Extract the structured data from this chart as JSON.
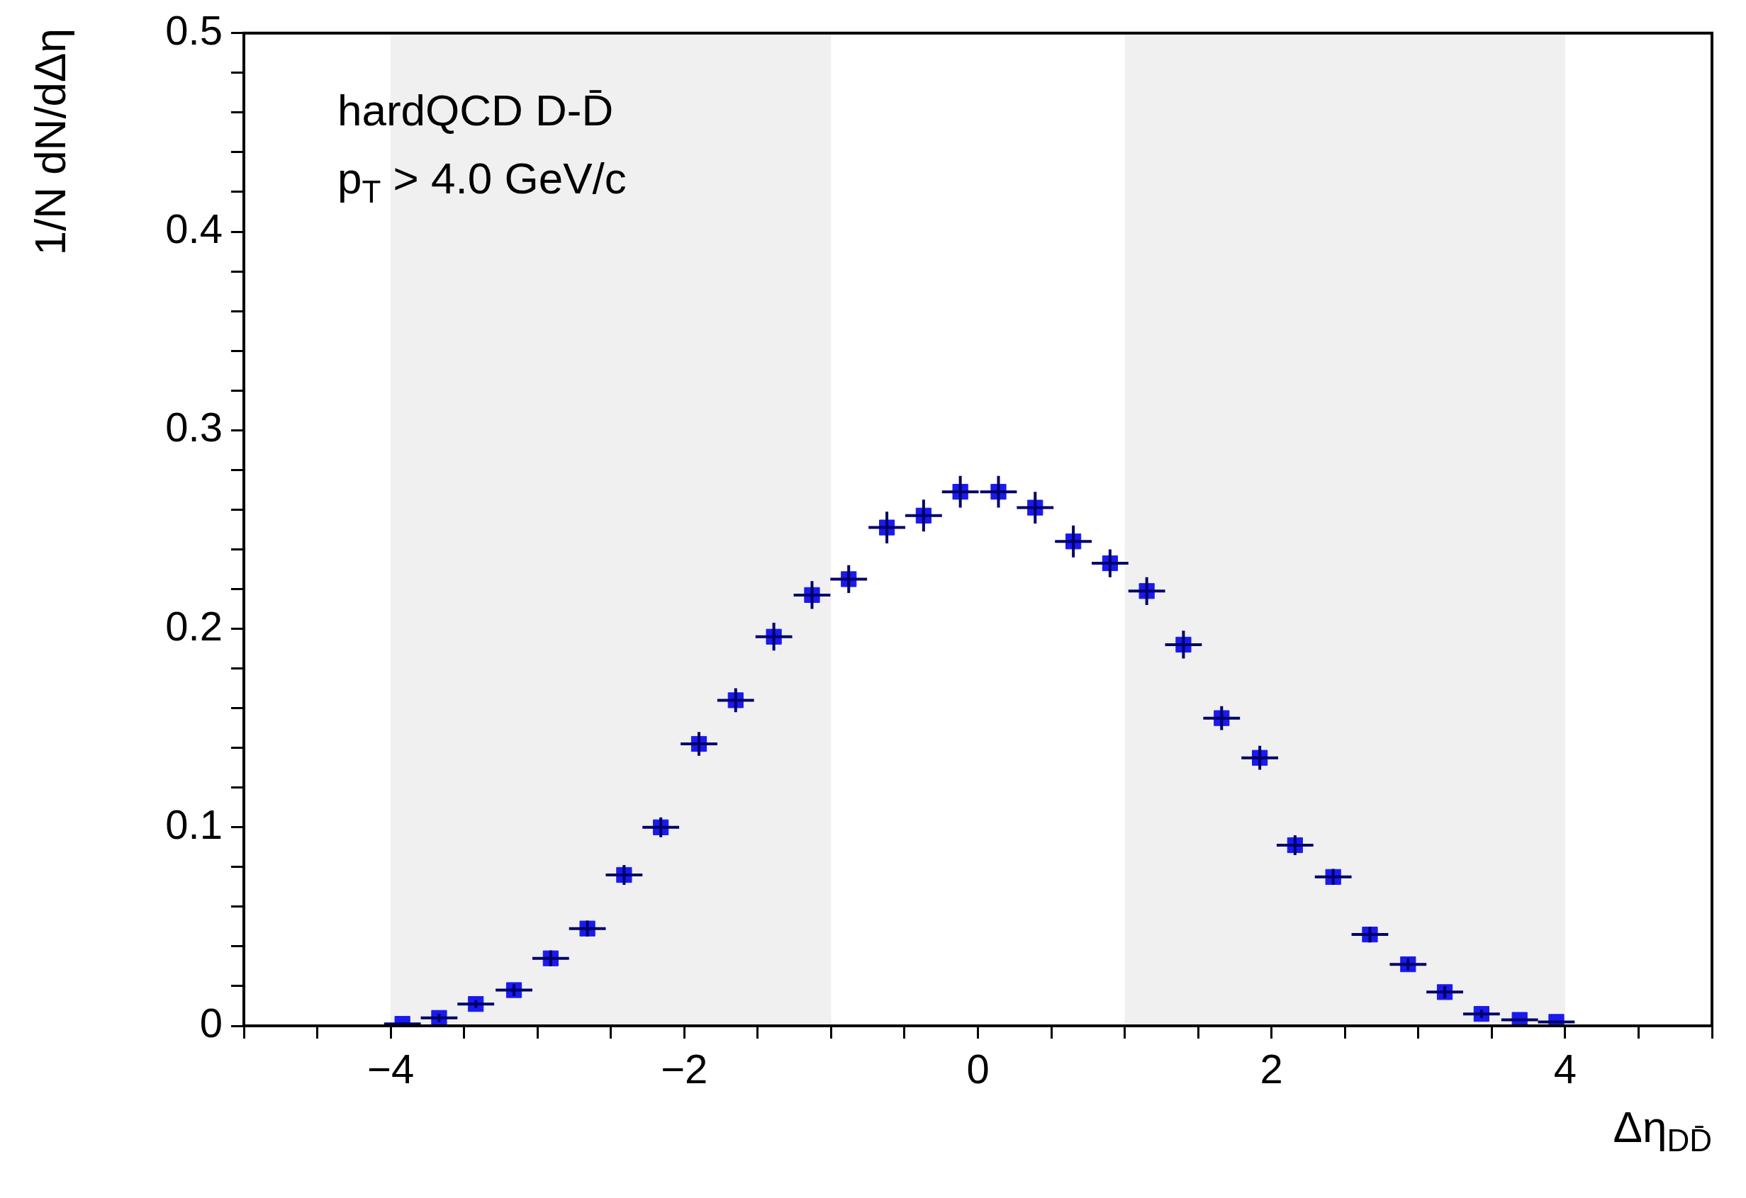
{
  "chart_data": {
    "type": "scatter",
    "xlabel": "Δη$_{DD̄}$",
    "ylabel": "1/N dN/dΔη",
    "annotations": [
      "hardQCD D-D̄",
      "p$_{T}$ > 4.0 GeV/c"
    ],
    "x": [
      -3.92,
      -3.67,
      -3.42,
      -3.16,
      -2.91,
      -2.66,
      -2.41,
      -2.16,
      -1.9,
      -1.65,
      -1.39,
      -1.13,
      -0.88,
      -0.62,
      -0.37,
      -0.12,
      0.14,
      0.39,
      0.65,
      0.9,
      1.15,
      1.4,
      1.66,
      1.92,
      2.16,
      2.42,
      2.67,
      2.93,
      3.18,
      3.43,
      3.69,
      3.94
    ],
    "series": [
      {
        "color": "#1a1aee",
        "values": [
          0.001,
          0.004,
          0.011,
          0.018,
          0.034,
          0.049,
          0.076,
          0.1,
          0.142,
          0.164,
          0.196,
          0.217,
          0.225,
          0.251,
          0.257,
          0.269,
          0.269,
          0.261,
          0.244,
          0.233,
          0.219,
          0.192,
          0.155,
          0.135,
          0.091,
          0.075,
          0.046,
          0.031,
          0.017,
          0.006,
          0.003,
          0.002
        ],
        "errors": [
          null,
          0.002,
          0.002,
          0.003,
          0.004,
          0.004,
          0.005,
          0.005,
          0.006,
          0.006,
          0.007,
          0.007,
          0.007,
          0.008,
          0.008,
          0.008,
          0.008,
          0.008,
          0.008,
          0.007,
          0.007,
          0.007,
          0.006,
          0.006,
          0.005,
          0.004,
          0.004,
          0.003,
          0.003,
          0.002,
          null,
          null
        ],
        "xerrors": [
          0.125,
          0.125,
          0.125,
          0.125,
          0.125,
          0.125,
          0.125,
          0.125,
          0.125,
          0.125,
          0.125,
          0.125,
          0.125,
          0.125,
          0.125,
          0.125,
          0.125,
          0.125,
          0.125,
          0.125,
          0.125,
          0.125,
          0.125,
          0.125,
          0.125,
          0.125,
          0.125,
          0.125,
          0.125,
          0.125,
          0.125,
          0.125
        ]
      }
    ],
    "bands": [
      {
        "axis": "x",
        "from": -4,
        "to": -1,
        "color": "#eff0ef"
      },
      {
        "axis": "x",
        "from": 1,
        "to": 4,
        "color": "#eff0ef"
      }
    ],
    "xlim": [
      -5,
      5
    ],
    "xticks": [
      {
        "value": -5,
        "label": null
      },
      {
        "value": -4.5,
        "label": null
      },
      {
        "value": -4,
        "label": "−4"
      },
      {
        "value": -3.5,
        "label": null
      },
      {
        "value": -3,
        "label": null
      },
      {
        "value": -2.5,
        "label": null
      },
      {
        "value": -2,
        "label": "−2"
      },
      {
        "value": -1.5,
        "label": null
      },
      {
        "value": -1,
        "label": null
      },
      {
        "value": -0.5,
        "label": null
      },
      0,
      {
        "value": 0.5,
        "label": null
      },
      {
        "value": 1,
        "label": null
      },
      {
        "value": 1.5,
        "label": null
      },
      2,
      {
        "value": 2.5,
        "label": null
      },
      {
        "value": 3,
        "label": null
      },
      {
        "value": 3.5,
        "label": null
      },
      4,
      {
        "value": 4.5,
        "label": null
      },
      {
        "value": 5,
        "label": null
      }
    ],
    "ylim": [
      0,
      0.5
    ],
    "yticks": [
      0,
      {
        "value": 0.02,
        "label": null
      },
      {
        "value": 0.04,
        "label": null
      },
      {
        "value": 0.06,
        "label": null
      },
      {
        "value": 0.08,
        "label": null
      },
      0.1,
      {
        "value": 0.12,
        "label": null
      },
      {
        "value": 0.14,
        "label": null
      },
      {
        "value": 0.16,
        "label": null
      },
      {
        "value": 0.18,
        "label": null
      },
      0.2,
      {
        "value": 0.22,
        "label": null
      },
      {
        "value": 0.24,
        "label": null
      },
      {
        "value": 0.26,
        "label": null
      },
      {
        "value": 0.28,
        "label": null
      },
      0.3,
      {
        "value": 0.32,
        "label": null
      },
      {
        "value": 0.34,
        "label": null
      },
      {
        "value": 0.36,
        "label": null
      },
      {
        "value": 0.38,
        "label": null
      },
      0.4,
      {
        "value": 0.42,
        "label": null
      },
      {
        "value": 0.44,
        "label": null
      },
      {
        "value": 0.46,
        "label": null
      },
      {
        "value": 0.48,
        "label": null
      },
      0.5
    ],
    "grid": false,
    "legend": false,
    "marker": "square"
  }
}
